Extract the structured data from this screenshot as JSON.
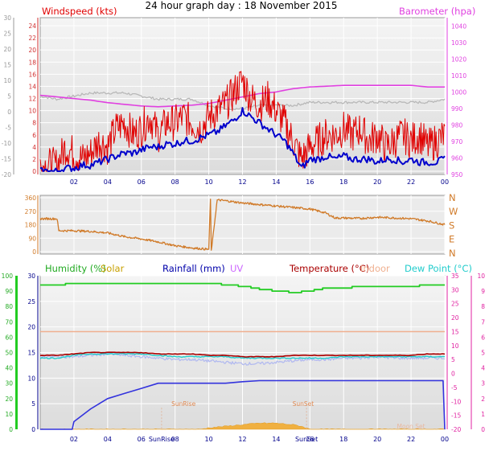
{
  "page": {
    "title": "24 hour graph day : 18 November 2015"
  },
  "colors": {
    "frame": "#9a9a9a",
    "plot_bg": "#ebebeb",
    "grid": "#ffffff",
    "windspeed": "#e00000",
    "windavg": "#0000cc",
    "barometer": "#e040e0",
    "gust_grey": "#b8b8b8",
    "direction": "#d07a28",
    "humidity": "#22cc22",
    "solar": "#c8a000",
    "rainfall": "#0000aa",
    "rain_line": "#3333dd",
    "uv": "#cc66ff",
    "temperature": "#aa0000",
    "indoor": "#f0b090",
    "dewpoint": "#22cccc",
    "sunrise_text": "#e08850",
    "solar_fill": "#f0b040",
    "left_axis_red": "#d03030",
    "left_axis_green": "#22aa22",
    "right_axis_pink": "#e020a0",
    "x_axis": "#00008b"
  },
  "chart_data": [
    {
      "id": "wind",
      "type": "line",
      "x_label_ticks": [
        "02",
        "04",
        "06",
        "08",
        "10",
        "12",
        "14",
        "16",
        "18",
        "20",
        "22",
        "00"
      ],
      "x_range_hours": [
        0,
        24
      ],
      "legend_left": "Windspeed (kts)",
      "legend_right": "Barometer (hpa)",
      "left_ticks": [
        "24",
        "22",
        "20",
        "18",
        "16",
        "14",
        "12",
        "10",
        "8",
        "6",
        "4",
        "2",
        "0"
      ],
      "left_ylim": [
        0,
        24
      ],
      "outer_left_ticks": [
        "30",
        "25",
        "20",
        "15",
        "10",
        "5",
        "0",
        "-5",
        "-10",
        "-15",
        "-20"
      ],
      "outer_left_ylim": [
        -20,
        30
      ],
      "right_ticks": [
        "1040",
        "1030",
        "1020",
        "1010",
        "1000",
        "990",
        "980",
        "970",
        "960",
        "950"
      ],
      "right_ylim": [
        950,
        1045
      ],
      "series": [
        {
          "name": "Windspeed (kts)",
          "axis": "left",
          "x": [
            0,
            0.5,
            1.0,
            1.5,
            2.0,
            2.5,
            3.0,
            3.5,
            4.0,
            4.5,
            5.0,
            5.5,
            6.0,
            6.5,
            7.0,
            7.5,
            8.0,
            8.5,
            9.0,
            9.5,
            10.0,
            10.5,
            11.0,
            11.5,
            12.0,
            12.5,
            13.0,
            13.5,
            14.0,
            14.5,
            15.0,
            15.5,
            16.0,
            16.5,
            17.0,
            17.5,
            18.0,
            18.5,
            19.0,
            19.5,
            20.0,
            20.5,
            21.0,
            21.5,
            22.0,
            22.5,
            23.0,
            23.5,
            24.0
          ],
          "values": [
            1,
            1,
            1,
            4,
            3,
            2,
            3,
            5,
            4,
            7,
            8,
            6,
            7,
            9,
            6,
            8,
            8,
            9,
            8,
            7,
            9,
            10,
            11,
            13,
            15,
            12,
            11,
            12,
            10,
            8,
            5,
            2,
            4,
            5,
            6,
            6,
            7,
            6,
            7,
            5,
            6,
            4,
            5,
            6,
            5,
            6,
            4,
            5,
            6
          ]
        },
        {
          "name": "Average Windspeed",
          "axis": "left",
          "x": [
            0,
            0.5,
            1.0,
            1.5,
            2.0,
            2.5,
            3.0,
            3.5,
            4.0,
            4.5,
            5.0,
            5.5,
            6.0,
            6.5,
            7.0,
            7.5,
            8.0,
            8.5,
            9.0,
            9.5,
            10.0,
            10.5,
            11.0,
            11.5,
            12.0,
            12.5,
            13.0,
            13.5,
            14.0,
            14.5,
            15.0,
            15.5,
            16.0,
            16.5,
            17.0,
            17.5,
            18.0,
            18.5,
            19.0,
            19.5,
            20.0,
            20.5,
            21.0,
            21.5,
            22.0,
            22.5,
            23.0,
            23.5,
            24.0
          ],
          "values": [
            0,
            0,
            0,
            0.5,
            0.5,
            1,
            1,
            1.5,
            2,
            2.5,
            3,
            3,
            3.5,
            4,
            4,
            4.5,
            4.5,
            5,
            5,
            5.5,
            6,
            6.5,
            7.5,
            8.5,
            10,
            9,
            8,
            7,
            6,
            5,
            3,
            0.5,
            2,
            2,
            2.5,
            2,
            2.5,
            2,
            2,
            2,
            1.5,
            2,
            2,
            1.5,
            2,
            1.5,
            1.5,
            1.5,
            2
          ]
        },
        {
          "name": "Barometer (hpa)",
          "axis": "right",
          "x": [
            0,
            1,
            2,
            3,
            4,
            5,
            6,
            7,
            8,
            9,
            10,
            11,
            12,
            13,
            14,
            15,
            16,
            17,
            18,
            19,
            20,
            21,
            22,
            23,
            24
          ],
          "values": [
            998,
            997,
            996,
            995,
            993.5,
            992.5,
            991.5,
            991,
            991.5,
            992,
            993,
            995,
            997,
            999,
            1000,
            1002,
            1003,
            1003.5,
            1004,
            1004,
            1004,
            1004,
            1004,
            1003,
            1003
          ]
        },
        {
          "name": "Gust (grey)",
          "axis": "outer_left",
          "x": [
            0,
            1,
            2,
            3,
            4,
            5,
            6,
            7,
            8,
            9,
            10,
            11,
            12,
            13,
            14,
            15,
            16,
            17,
            18,
            19,
            20,
            21,
            22,
            23,
            24
          ],
          "values": [
            5,
            4,
            5,
            6,
            6,
            6,
            5,
            4,
            4,
            4,
            2,
            1,
            1,
            2,
            2,
            2,
            3,
            3,
            3,
            3,
            3,
            3,
            3,
            3,
            4
          ]
        }
      ]
    },
    {
      "id": "direction",
      "type": "line",
      "x_range_hours": [
        0,
        24
      ],
      "left_ticks": [
        "360",
        "270",
        "180",
        "90",
        "0"
      ],
      "left_ylim": [
        0,
        360
      ],
      "right_ticks": [
        "N",
        "W",
        "S",
        "E",
        "N"
      ],
      "series": [
        {
          "name": "Wind Direction",
          "x": [
            0,
            1,
            1.1,
            2,
            3,
            4,
            5,
            6,
            7,
            8,
            9,
            10,
            10.1,
            10.15,
            10.5,
            11,
            12,
            13,
            14,
            15,
            16,
            16.9,
            17.5,
            18,
            19,
            20,
            21,
            22,
            23,
            24
          ],
          "values": [
            220,
            220,
            140,
            140,
            135,
            125,
            100,
            85,
            65,
            40,
            25,
            15,
            350,
            5,
            345,
            340,
            325,
            315,
            305,
            295,
            285,
            260,
            225,
            225,
            222,
            230,
            225,
            220,
            205,
            180
          ]
        }
      ]
    },
    {
      "id": "multi",
      "type": "line",
      "x_label_ticks": [
        "02",
        "04",
        "06",
        "SunRise",
        "08",
        "10",
        "12",
        "14",
        "16",
        "SunSet",
        "18",
        "20",
        "22",
        "00"
      ],
      "x_range_hours": [
        0,
        24
      ],
      "legend": [
        "Humidity (%)",
        "Solar",
        "Rainfall (mm)",
        "UV",
        "Temperature (°C)",
        "Indoor",
        "Dew Point (°C)"
      ],
      "outer_left_ticks": [
        "100",
        "90",
        "80",
        "70",
        "60",
        "50",
        "40",
        "30",
        "20",
        "10",
        "0"
      ],
      "outer_left_ylim": [
        0,
        100
      ],
      "inner_left_ticks": [
        "30",
        "25",
        "20",
        "15",
        "10",
        "5",
        "0"
      ],
      "inner_left_ylim": [
        0,
        30
      ],
      "right_ticks": [
        "35",
        "30",
        "25",
        "20",
        "15",
        "10",
        "5",
        "0",
        "-5",
        "-10",
        "-15",
        "-20"
      ],
      "right_ylim": [
        -20,
        35
      ],
      "far_right_ticks": [
        "10",
        "9",
        "8",
        "7",
        "6",
        "5",
        "4",
        "3",
        "2",
        "1",
        "0"
      ],
      "far_right_ylim": [
        0,
        10
      ],
      "annotations": [
        "SunRise",
        "SunSet",
        "Moon Set"
      ],
      "series": [
        {
          "name": "Humidity (%)",
          "axis": "outer_left",
          "x": [
            0,
            1,
            2,
            3,
            4,
            5,
            6,
            7,
            8,
            9,
            10,
            11,
            12,
            13,
            14,
            15,
            16,
            17,
            18,
            19,
            20,
            21,
            22,
            23,
            24
          ],
          "values": [
            94,
            94,
            95,
            95,
            95,
            95,
            95,
            95,
            95,
            95,
            95,
            94,
            93,
            91,
            90,
            89,
            90,
            92,
            92,
            93,
            93,
            93,
            93,
            94,
            94
          ]
        },
        {
          "name": "Rainfall (mm)",
          "axis": "inner_left",
          "x": [
            0,
            1,
            1.9,
            2,
            3,
            4,
            5,
            6,
            7,
            8,
            9,
            10,
            11,
            12,
            13,
            14,
            15,
            16,
            17,
            18,
            19,
            20,
            21,
            22,
            23,
            23.9,
            24
          ],
          "values": [
            0,
            0,
            0,
            1.5,
            4,
            6,
            7,
            8,
            9,
            9,
            9,
            9,
            9,
            9.3,
            9.5,
            9.5,
            9.5,
            9.5,
            9.5,
            9.5,
            9.5,
            9.5,
            9.5,
            9.5,
            9.5,
            9.5,
            0
          ]
        },
        {
          "name": "Temperature (°C)",
          "axis": "right",
          "x": [
            0,
            1,
            2,
            3,
            4,
            5,
            6,
            7,
            8,
            9,
            10,
            11,
            12,
            13,
            14,
            15,
            16,
            17,
            18,
            19,
            20,
            21,
            22,
            23,
            24
          ],
          "values": [
            6.5,
            6.5,
            7,
            7.5,
            7.5,
            7.5,
            7.5,
            7,
            7,
            7,
            6.5,
            6.5,
            6,
            6,
            6,
            6.5,
            6.5,
            6.5,
            6.5,
            6.5,
            6.5,
            6.5,
            6.5,
            7,
            7
          ]
        },
        {
          "name": "Indoor",
          "axis": "right",
          "x": [
            0,
            12,
            24
          ],
          "values": [
            15,
            15,
            15
          ]
        },
        {
          "name": "Dew Point (°C)",
          "axis": "right",
          "x": [
            0,
            1,
            2,
            3,
            4,
            5,
            6,
            7,
            8,
            9,
            10,
            11,
            12,
            13,
            14,
            15,
            16,
            17,
            18,
            19,
            20,
            21,
            22,
            23,
            24
          ],
          "values": [
            5.5,
            5.5,
            6.5,
            7,
            7,
            7,
            7,
            6.5,
            6,
            6,
            6,
            6,
            5.5,
            5.5,
            5.5,
            5.5,
            5.5,
            5.5,
            6,
            6,
            6,
            6,
            6,
            6,
            6
          ]
        },
        {
          "name": "UV",
          "axis": "right",
          "x": [
            0,
            1,
            2,
            3,
            4,
            5,
            6,
            7,
            8,
            9,
            10,
            11,
            12,
            13,
            14,
            15,
            16,
            17,
            18,
            19,
            20,
            21,
            22,
            23,
            24
          ],
          "values": [
            6,
            6,
            6,
            6.5,
            7,
            6.5,
            6,
            5.5,
            5,
            5,
            4.5,
            4,
            3.5,
            3.5,
            4,
            4.5,
            5,
            5,
            5.5,
            5.5,
            6,
            5.5,
            5.5,
            5.5,
            5.5
          ]
        },
        {
          "name": "Solar",
          "axis": "outer_left",
          "x": [
            0,
            9.5,
            10,
            11,
            12,
            13,
            14,
            15,
            15.5,
            16,
            24
          ],
          "values": [
            0,
            0,
            1,
            2,
            3,
            4,
            4,
            3,
            2,
            0,
            0
          ]
        }
      ]
    }
  ]
}
